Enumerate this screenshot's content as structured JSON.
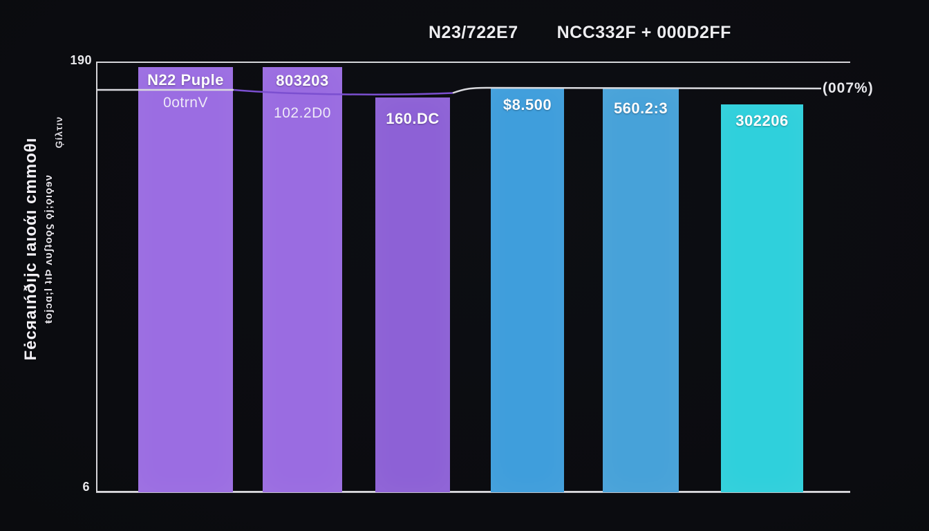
{
  "title": {
    "part1": "N23/722E7",
    "part2": "NCC332F + 000D2FF"
  },
  "y_axis": {
    "top_tick": "190",
    "bottom_tick": "6",
    "title_line1": "Fėcяaıńðıjc ıаıoάı cmmoθı",
    "title_line2": "ŧojɔɑ;l ʇıϷ ʌυʃʇoϙϛ ϙj;ϙıϙɘν",
    "title_line3": "Ģίλτıν"
  },
  "colors": {
    "background": "#0c0d12",
    "axis": "#d6d6da",
    "trend_white": "#d9d9de",
    "trend_purple": "#7b4fd0",
    "title_text": "#ededf0"
  },
  "chart_data": {
    "type": "bar",
    "title": "N23/722E7  NCC332F + 000D2FF",
    "xlabel": "",
    "ylabel": "Fėcяaıńðıjc ıаıoάı cmmoθı",
    "ylim": [
      6,
      190
    ],
    "grid": false,
    "legend": "none",
    "categories": [
      "N22 Puple",
      "803203",
      "160.DC",
      "$8.500",
      "560.2:3",
      "302206"
    ],
    "bars": [
      {
        "label_primary": "N22 Puple",
        "label_secondary": "0otrnV",
        "value": 188,
        "color": "#9b6de2"
      },
      {
        "label_primary": "803203",
        "label_secondary": "102.2D0",
        "value": 188,
        "color": "#9a6ce1"
      },
      {
        "label_primary": "160.DC",
        "label_secondary": "",
        "value": 175,
        "color": "#8d61d6"
      },
      {
        "label_primary": "$8.500",
        "label_secondary": "",
        "value": 179,
        "color": "#3f9edc"
      },
      {
        "label_primary": "560.2:3",
        "label_secondary": "",
        "value": 179,
        "color": "#47a2d9"
      },
      {
        "label_primary": "302206",
        "label_secondary": "",
        "value": 172,
        "color": "#2fd0dc"
      }
    ],
    "line": {
      "label": "(007%)",
      "approx_value": 179
    }
  }
}
